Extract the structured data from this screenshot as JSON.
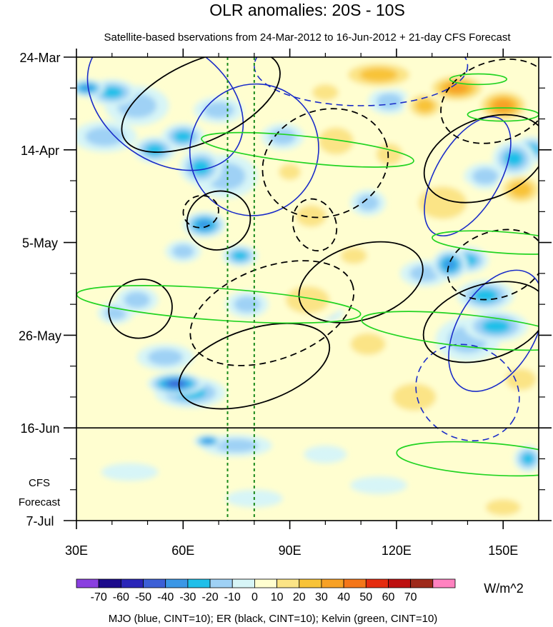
{
  "chart_data": {
    "type": "heatmap",
    "title": "OLR anomalies: 20S - 10S",
    "subtitle": "Satellite-based bservations from 24-Mar-2012 to 16-Jun-2012 + 21-day CFS Forecast",
    "x_range": [
      30,
      160
    ],
    "x_ticks": [
      "30E",
      "60E",
      "90E",
      "120E",
      "150E"
    ],
    "x_tick_values": [
      30,
      60,
      90,
      120,
      150
    ],
    "y_ticks": [
      "24-Mar",
      "14-Apr",
      "5-May",
      "26-May",
      "16-Jun",
      "7-Jul"
    ],
    "y_tick_days": [
      0,
      21,
      42,
      63,
      84,
      105
    ],
    "y_range_days": [
      0,
      105
    ],
    "forecast_start_day": 84,
    "forecast_label": [
      "CFS",
      "Forecast"
    ],
    "reference_lines_x": [
      72.5,
      80
    ],
    "colorbar": {
      "labels": [
        "-70",
        "-60",
        "-50",
        "-40",
        "-30",
        "-20",
        "-10",
        "0",
        "10",
        "20",
        "30",
        "40",
        "50",
        "60",
        "70"
      ],
      "colors": [
        "#8a3fe0",
        "#1c0a8c",
        "#2a25b8",
        "#3c5fd6",
        "#3b97e6",
        "#1fbfe9",
        "#9fd1f5",
        "#d7f5f7",
        "#fffed0",
        "#fbe486",
        "#f8c337",
        "#f7a125",
        "#f47619",
        "#e52c0f",
        "#bd1010",
        "#9e2a1b",
        "#ff82c0"
      ],
      "units": "W/m^2"
    },
    "caption": "MJO (blue, CINT=10); ER (black, CINT=10); Kelvin (green, CINT=10)",
    "olr_blobs": [
      {
        "lon": 33,
        "day": 7,
        "rlon": 5,
        "rday": 2.0,
        "v": -45
      },
      {
        "lon": 40,
        "day": 8,
        "rlon": 7,
        "rday": 3.0,
        "v": -35
      },
      {
        "lon": 47,
        "day": 11,
        "rlon": 9,
        "rday": 4.5,
        "v": -25
      },
      {
        "lon": 38,
        "day": 18,
        "rlon": 9,
        "rday": 3.5,
        "v": -25
      },
      {
        "lon": 52,
        "day": 21,
        "rlon": 6,
        "rday": 3.0,
        "v": -35
      },
      {
        "lon": 60,
        "day": 18,
        "rlon": 6,
        "rday": 3.0,
        "v": -30
      },
      {
        "lon": 65,
        "day": 25,
        "rlon": 6,
        "rday": 4.0,
        "v": -35
      },
      {
        "lon": 72,
        "day": 27,
        "rlon": 9,
        "rday": 5.0,
        "v": -25
      },
      {
        "lon": 70,
        "day": 12,
        "rlon": 7,
        "rday": 3.0,
        "v": -25
      },
      {
        "lon": 66,
        "day": 38,
        "rlon": 6,
        "rday": 3.0,
        "v": -45
      },
      {
        "lon": 60,
        "day": 44,
        "rlon": 5,
        "rday": 2.5,
        "v": -25
      },
      {
        "lon": 76,
        "day": 45,
        "rlon": 5,
        "rday": 2.5,
        "v": -30
      },
      {
        "lon": 88,
        "day": 18,
        "rlon": 6,
        "rday": 3.0,
        "v": -20
      },
      {
        "lon": 58,
        "day": 74,
        "rlon": 8,
        "rday": 2.5,
        "v": -50
      },
      {
        "lon": 62,
        "day": 76,
        "rlon": 10,
        "rday": 3.5,
        "v": -30
      },
      {
        "lon": 47,
        "day": 55,
        "rlon": 6,
        "rday": 3.0,
        "v": -25
      },
      {
        "lon": 41,
        "day": 58,
        "rlon": 5,
        "rday": 2.5,
        "v": -20
      },
      {
        "lon": 135,
        "day": 47,
        "rlon": 5,
        "rday": 3.5,
        "v": -45
      },
      {
        "lon": 140,
        "day": 46,
        "rlon": 6,
        "rday": 3.0,
        "v": -35
      },
      {
        "lon": 128,
        "day": 49,
        "rlon": 7,
        "rday": 3.0,
        "v": -25
      },
      {
        "lon": 145,
        "day": 54,
        "rlon": 8,
        "rday": 3.5,
        "v": -30
      },
      {
        "lon": 148,
        "day": 61,
        "rlon": 9,
        "rday": 3.5,
        "v": -30
      },
      {
        "lon": 140,
        "day": 64,
        "rlon": 9,
        "rday": 5.0,
        "v": -25
      },
      {
        "lon": 153,
        "day": 23,
        "rlon": 6,
        "rday": 4.0,
        "v": -35
      },
      {
        "lon": 158,
        "day": 21,
        "rlon": 5,
        "rday": 3.0,
        "v": -30
      },
      {
        "lon": 145,
        "day": 27,
        "rlon": 6,
        "rday": 3.0,
        "v": -25
      },
      {
        "lon": 118,
        "day": 10,
        "rlon": 6,
        "rday": 3.0,
        "v": -20
      },
      {
        "lon": 112,
        "day": 33,
        "rlon": 5,
        "rday": 3.0,
        "v": -20
      },
      {
        "lon": 78,
        "day": 56,
        "rlon": 6,
        "rday": 3.0,
        "v": -20
      },
      {
        "lon": 100,
        "day": 58,
        "rlon": 5,
        "rday": 2.0,
        "v": -20
      },
      {
        "lon": 75,
        "day": 88,
        "rlon": 10,
        "rday": 2.5,
        "v": -25
      },
      {
        "lon": 67,
        "day": 87,
        "rlon": 4,
        "rday": 1.5,
        "v": -40
      },
      {
        "lon": 100,
        "day": 90,
        "rlon": 6,
        "rday": 2.0,
        "v": -15
      },
      {
        "lon": 115,
        "day": 97,
        "rlon": 8,
        "rday": 2.0,
        "v": -15
      },
      {
        "lon": 157,
        "day": 91,
        "rlon": 4,
        "rday": 3.0,
        "v": -35
      },
      {
        "lon": 45,
        "day": 94,
        "rlon": 8,
        "rday": 2.0,
        "v": -15
      },
      {
        "lon": 80,
        "day": 100,
        "rlon": 8,
        "rday": 2.0,
        "v": -15
      },
      {
        "lon": 55,
        "day": 68,
        "rlon": 8,
        "rday": 3.0,
        "v": -20
      },
      {
        "lon": 115,
        "day": 4,
        "rlon": 12,
        "rday": 3.5,
        "v": 30
      },
      {
        "lon": 137,
        "day": 7,
        "rlon": 9,
        "rday": 3.5,
        "v": 45
      },
      {
        "lon": 150,
        "day": 11,
        "rlon": 8,
        "rday": 4.0,
        "v": 40
      },
      {
        "lon": 128,
        "day": 11,
        "rlon": 6,
        "rday": 3.5,
        "v": 30
      },
      {
        "lon": 103,
        "day": 19,
        "rlon": 8,
        "rday": 5.0,
        "v": 25
      },
      {
        "lon": 118,
        "day": 22,
        "rlon": 6,
        "rday": 4.0,
        "v": 20
      },
      {
        "lon": 96,
        "day": 36,
        "rlon": 7,
        "rday": 4.0,
        "v": 25
      },
      {
        "lon": 133,
        "day": 33,
        "rlon": 11,
        "rday": 6.0,
        "v": 25
      },
      {
        "lon": 155,
        "day": 30,
        "rlon": 7,
        "rday": 4.0,
        "v": 30
      },
      {
        "lon": 95,
        "day": 55,
        "rlon": 10,
        "rday": 5.0,
        "v": 20
      },
      {
        "lon": 112,
        "day": 65,
        "rlon": 8,
        "rday": 4.0,
        "v": 20
      },
      {
        "lon": 125,
        "day": 77,
        "rlon": 10,
        "rday": 5.0,
        "v": 20
      },
      {
        "lon": 155,
        "day": 73,
        "rlon": 7,
        "rday": 4.0,
        "v": 20
      },
      {
        "lon": 108,
        "day": 45,
        "rlon": 6,
        "rday": 3.0,
        "v": 20
      },
      {
        "lon": 40,
        "day": 35,
        "rlon": 7,
        "rday": 3.0,
        "v": 15
      },
      {
        "lon": 57,
        "day": 31,
        "rlon": 5,
        "rday": 3.0,
        "v": 15
      },
      {
        "lon": 47,
        "day": 25,
        "rlon": 5,
        "rday": 3.0,
        "v": 15
      },
      {
        "lon": 85,
        "day": 70,
        "rlon": 10,
        "rday": 5.0,
        "v": 15
      },
      {
        "lon": 140,
        "day": 97,
        "rlon": 12,
        "rday": 4.0,
        "v": 15
      },
      {
        "lon": 105,
        "day": 102,
        "rlon": 10,
        "rday": 3.0,
        "v": 15
      },
      {
        "lon": 150,
        "day": 102,
        "rlon": 8,
        "rday": 3.0,
        "v": 20
      },
      {
        "lon": 90,
        "day": 26,
        "rlon": 5,
        "rday": 3.0,
        "v": 20
      },
      {
        "lon": 100,
        "day": 8,
        "rlon": 6,
        "rday": 3.0,
        "v": 20
      },
      {
        "lon": 64,
        "day": 8,
        "rlon": 5,
        "rday": 2.5,
        "v": 15
      }
    ],
    "mjo_contours": [
      {
        "lon": 55,
        "day": 10,
        "rlon": 24,
        "rday": 4.5,
        "angle": 35,
        "dash": false
      },
      {
        "lon": 80,
        "day": 21,
        "rlon": 18,
        "rday": 5.0,
        "angle": 25,
        "dash": false
      },
      {
        "lon": 140,
        "day": 27,
        "rlon": 9,
        "rday": 5.0,
        "angle": 30,
        "dash": false
      },
      {
        "lon": 148,
        "day": 62,
        "rlon": 11,
        "rday": 5.0,
        "angle": 30,
        "dash": false
      },
      {
        "lon": 110,
        "day": 2,
        "rlon": 30,
        "rday": 3.0,
        "angle": 0,
        "dash": true
      },
      {
        "lon": 140,
        "day": 76,
        "rlon": 15,
        "rday": 3.5,
        "angle": 30,
        "dash": true
      }
    ],
    "er_contours": [
      {
        "lon": 65,
        "day": 10,
        "rlon": 24,
        "rday": 3.0,
        "angle": -25,
        "dash": false
      },
      {
        "lon": 70,
        "day": 37,
        "rlon": 9,
        "rday": 2.2,
        "angle": -20,
        "dash": false
      },
      {
        "lon": 48,
        "day": 57,
        "rlon": 9,
        "rday": 2.2,
        "angle": -20,
        "dash": false
      },
      {
        "lon": 80,
        "day": 70,
        "rlon": 22,
        "rday": 2.8,
        "angle": -18,
        "dash": false
      },
      {
        "lon": 110,
        "day": 51,
        "rlon": 18,
        "rday": 2.8,
        "angle": -18,
        "dash": false
      },
      {
        "lon": 145,
        "day": 60,
        "rlon": 18,
        "rday": 2.8,
        "angle": -18,
        "dash": false
      },
      {
        "lon": 145,
        "day": 23,
        "rlon": 18,
        "rday": 3.0,
        "angle": -22,
        "dash": false
      },
      {
        "lon": 85,
        "day": 58,
        "rlon": 24,
        "rday": 3.5,
        "angle": -20,
        "dash": true
      },
      {
        "lon": 100,
        "day": 24,
        "rlon": 18,
        "rday": 4.0,
        "angle": -20,
        "dash": true
      },
      {
        "lon": 148,
        "day": 10,
        "rlon": 16,
        "rday": 3.0,
        "angle": -20,
        "dash": true
      },
      {
        "lon": 65,
        "day": 35,
        "rlon": 5,
        "rday": 1.2,
        "angle": -15,
        "dash": true
      },
      {
        "lon": 97,
        "day": 38,
        "rlon": 6,
        "rday": 2.0,
        "angle": -20,
        "dash": true
      },
      {
        "lon": 148,
        "day": 47,
        "rlon": 14,
        "rday": 2.5,
        "angle": -18,
        "dash": true
      }
    ],
    "kelvin_contours": [
      {
        "lon": 70,
        "day": 56,
        "rlon": 40,
        "rday": 1.2,
        "angle": 4,
        "dash": false
      },
      {
        "lon": 95,
        "day": 21,
        "rlon": 30,
        "rday": 1.0,
        "angle": 6,
        "dash": false
      },
      {
        "lon": 140,
        "day": 62,
        "rlon": 30,
        "rday": 1.2,
        "angle": 6,
        "dash": false
      },
      {
        "lon": 145,
        "day": 91,
        "rlon": 25,
        "rday": 1.2,
        "angle": 4,
        "dash": false
      },
      {
        "lon": 150,
        "day": 42,
        "rlon": 20,
        "rday": 0.8,
        "angle": 4,
        "dash": false
      },
      {
        "lon": 150,
        "day": 13,
        "rlon": 10,
        "rday": 0.5,
        "angle": 0,
        "dash": false
      },
      {
        "lon": 143,
        "day": 5,
        "rlon": 8,
        "rday": 0.4,
        "angle": 0,
        "dash": false
      }
    ]
  }
}
